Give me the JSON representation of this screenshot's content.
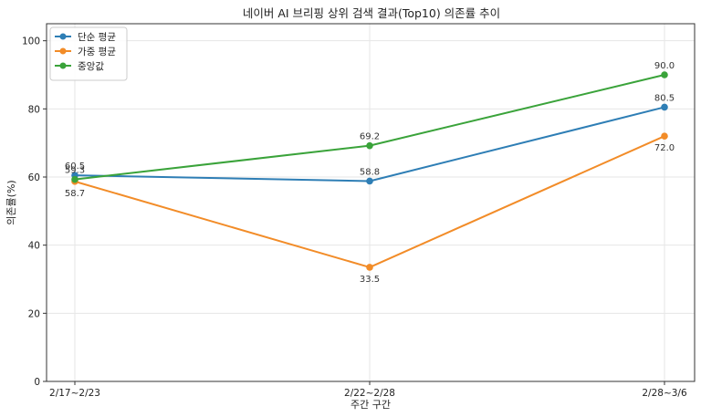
{
  "chart_data": {
    "type": "line",
    "title": "네이버 AI 브리핑 상위 검색 결과(Top10) 의존률 추이",
    "xlabel": "주간 구간",
    "ylabel": "의존률(%)",
    "categories": [
      "2/17~2/23",
      "2/22~2/28",
      "2/28~3/6"
    ],
    "ylim": [
      0,
      105
    ],
    "yticks": [
      0,
      20,
      40,
      60,
      80,
      100
    ],
    "grid": true,
    "legend_position": "top-left",
    "series": [
      {
        "name": "단순 평균",
        "color": "#2e7eb5",
        "values": [
          60.5,
          58.8,
          80.5
        ],
        "labels": [
          "60.5",
          "58.8",
          "80.5"
        ],
        "label_side": [
          "above",
          "above",
          "above"
        ]
      },
      {
        "name": "가중 평균",
        "color": "#f28c28",
        "values": [
          58.7,
          33.5,
          72.0
        ],
        "labels": [
          "58.7",
          "33.5",
          "72.0"
        ],
        "label_side": [
          "below",
          "below",
          "below"
        ]
      },
      {
        "name": "중앙값",
        "color": "#3aa33a",
        "values": [
          59.3,
          69.2,
          90.0
        ],
        "labels": [
          "59.3",
          "69.2",
          "90.0"
        ],
        "label_side": [
          "above",
          "above",
          "above"
        ]
      }
    ]
  }
}
